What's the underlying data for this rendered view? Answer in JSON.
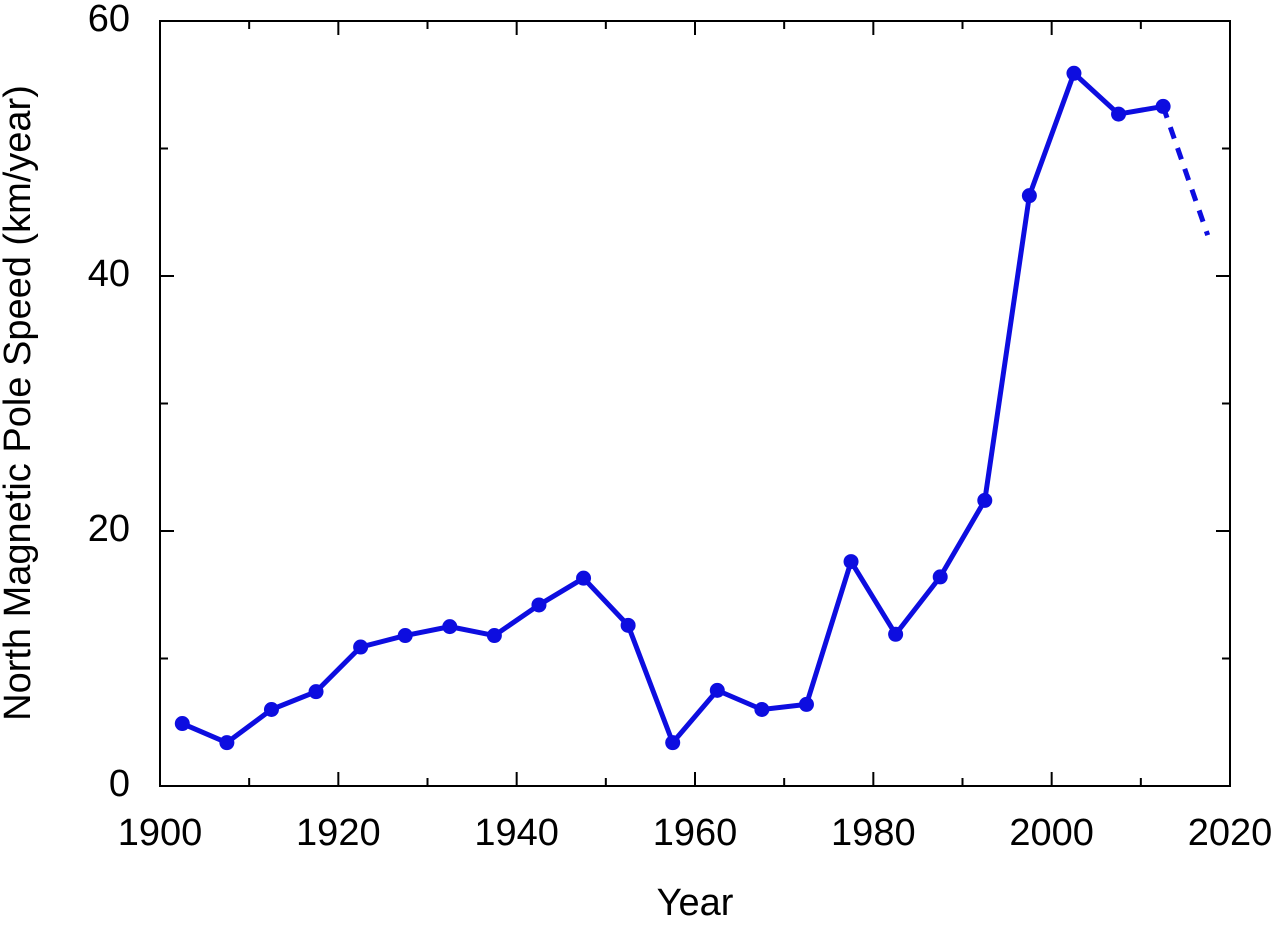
{
  "chart_data": {
    "type": "line",
    "x_label": "Year",
    "y_label": "North Magnetic Pole Speed (km/year)",
    "series": [
      {
        "color": "#0d0de0",
        "style": "solid",
        "markers": true,
        "x": [
          1902.5,
          1907.5,
          1912.5,
          1917.5,
          1922.5,
          1927.5,
          1932.5,
          1937.5,
          1942.5,
          1947.5,
          1952.5,
          1957.5,
          1962.5,
          1967.5,
          1972.5,
          1977.5,
          1982.5,
          1987.5,
          1992.5,
          1997.5,
          2002.5,
          2007.5,
          2012.5
        ],
        "values": [
          4.9,
          3.4,
          6.0,
          7.4,
          10.9,
          11.8,
          12.5,
          11.8,
          14.2,
          16.3,
          12.6,
          3.4,
          7.5,
          6.0,
          6.4,
          17.6,
          11.9,
          16.4,
          22.4,
          46.3,
          55.9,
          52.7,
          53.3
        ]
      },
      {
        "color": "#0d0de0",
        "style": "dashed",
        "markers": false,
        "x": [
          2012.5,
          2017.5
        ],
        "values": [
          53.3,
          43.2
        ]
      }
    ],
    "xlim": [
      1900,
      2020
    ],
    "ylim": [
      0,
      60
    ],
    "xticks": [
      1900,
      1920,
      1940,
      1960,
      1980,
      2000,
      2020
    ],
    "yticks": [
      0,
      20,
      40,
      60
    ],
    "x_minor_ticks": [
      1910,
      1930,
      1950,
      1970,
      1990,
      2010
    ],
    "y_minor_ticks": [
      10,
      30,
      50
    ],
    "mirror_ticks": true
  }
}
